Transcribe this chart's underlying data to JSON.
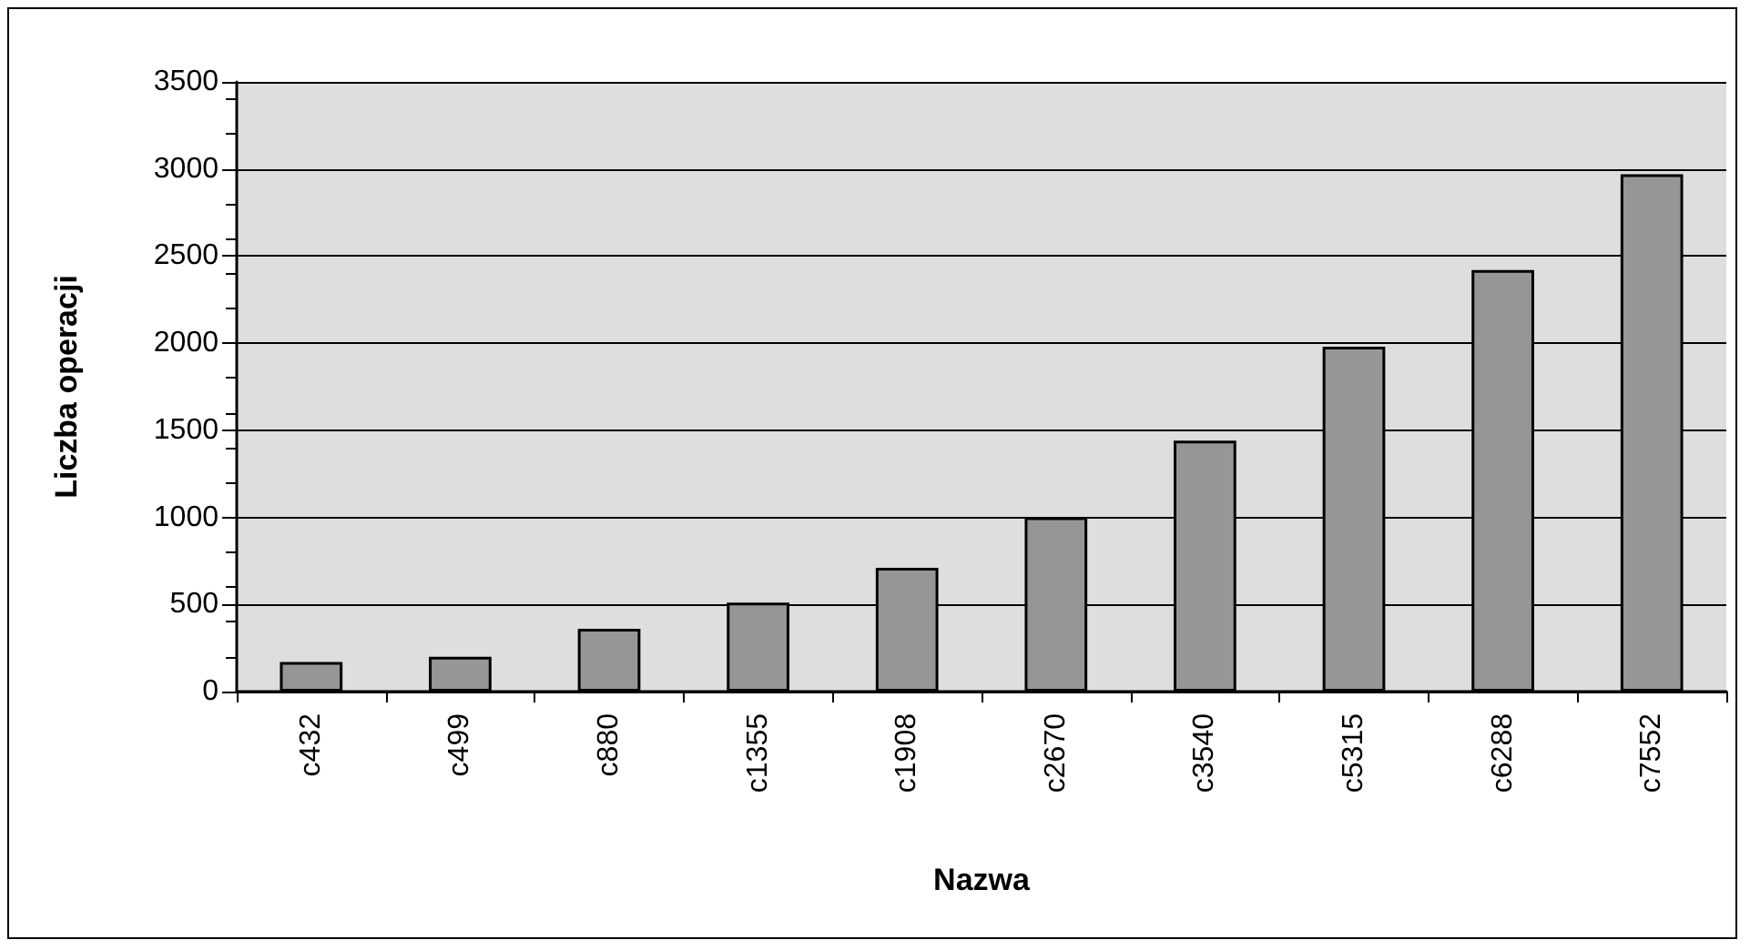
{
  "chart_data": {
    "type": "bar",
    "xlabel": "Nazwa",
    "ylabel": "Liczba operacji",
    "categories": [
      "c432",
      "c499",
      "c880",
      "c1355",
      "c1908",
      "c2670",
      "c3540",
      "c5315",
      "c6288",
      "c7552"
    ],
    "values": [
      170,
      200,
      360,
      510,
      710,
      1000,
      1440,
      1980,
      2420,
      2970
    ],
    "color": "#969696",
    "ylim": [
      0,
      3500
    ],
    "yticks": [
      0,
      500,
      1000,
      1500,
      2000,
      2500,
      3000,
      3500
    ],
    "grid": "y"
  }
}
